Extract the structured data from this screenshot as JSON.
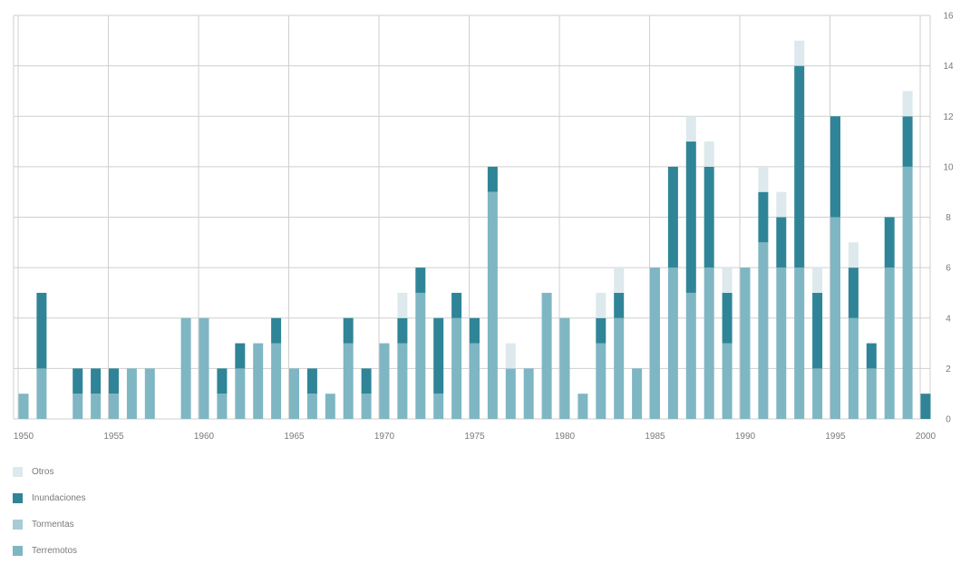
{
  "chart_data": {
    "type": "bar",
    "stacked": true,
    "title": "",
    "xlabel": "",
    "ylabel": "",
    "ylim": [
      0,
      16
    ],
    "yticks": [
      0,
      2,
      4,
      6,
      8,
      10,
      12,
      14,
      16
    ],
    "xticks": [
      1950,
      1955,
      1960,
      1965,
      1970,
      1975,
      1980,
      1985,
      1990,
      1995,
      2000
    ],
    "grid": true,
    "legend_position": "bottom-left",
    "x": [
      1950,
      1951,
      1952,
      1953,
      1954,
      1955,
      1956,
      1957,
      1958,
      1959,
      1960,
      1961,
      1962,
      1963,
      1964,
      1965,
      1966,
      1967,
      1968,
      1969,
      1970,
      1971,
      1972,
      1973,
      1974,
      1975,
      1976,
      1977,
      1978,
      1979,
      1980,
      1981,
      1982,
      1983,
      1984,
      1985,
      1986,
      1987,
      1988,
      1989,
      1990,
      1991,
      1992,
      1993,
      1994,
      1995,
      1996,
      1997,
      1998,
      1999,
      2000
    ],
    "series": [
      {
        "name": "Terremotos",
        "color": "#7fb6c3",
        "values": [
          1,
          2,
          0,
          1,
          1,
          1,
          2,
          2,
          0,
          4,
          4,
          1,
          2,
          3,
          3,
          2,
          1,
          1,
          3,
          1,
          3,
          3,
          5,
          1,
          4,
          3,
          9,
          2,
          2,
          5,
          4,
          1,
          3,
          4,
          2,
          6,
          6,
          5,
          6,
          3,
          6,
          7,
          6,
          6,
          2,
          8,
          4,
          2,
          6,
          10,
          0
        ]
      },
      {
        "name": "Tormentas",
        "color": "#a6ccd6",
        "values": [
          0,
          0,
          0,
          0,
          0,
          0,
          0,
          0,
          0,
          0,
          0,
          0,
          0,
          0,
          0,
          0,
          0,
          0,
          0,
          0,
          0,
          0,
          0,
          0,
          0,
          0,
          0,
          0,
          0,
          0,
          0,
          0,
          0,
          0,
          0,
          0,
          0,
          0,
          0,
          0,
          0,
          0,
          0,
          0,
          0,
          0,
          0,
          0,
          0,
          0,
          0
        ]
      },
      {
        "name": "Inundaciones",
        "color": "#2f8597",
        "values": [
          0,
          3,
          0,
          1,
          1,
          1,
          0,
          0,
          0,
          0,
          0,
          1,
          1,
          0,
          1,
          0,
          1,
          0,
          1,
          1,
          0,
          1,
          1,
          3,
          1,
          1,
          1,
          0,
          0,
          0,
          0,
          0,
          1,
          1,
          0,
          0,
          4,
          6,
          4,
          2,
          0,
          2,
          2,
          8,
          3,
          4,
          2,
          1,
          2,
          2,
          1
        ]
      },
      {
        "name": "Otros",
        "color": "#dde9ec",
        "values": [
          0,
          0,
          0,
          0,
          0,
          0,
          0,
          0,
          0,
          0,
          0,
          0,
          0,
          0,
          0,
          0,
          0,
          0,
          0,
          0,
          0,
          1,
          0,
          0,
          0,
          0,
          0,
          1,
          0,
          0,
          0,
          0,
          1,
          1,
          0,
          0,
          0,
          1,
          1,
          1,
          0,
          1,
          1,
          1,
          1,
          0,
          1,
          0,
          0,
          1,
          0
        ]
      }
    ]
  },
  "legend": [
    {
      "label": "Otros",
      "color": "#dde9ec"
    },
    {
      "label": "Inundaciones",
      "color": "#2f8597"
    },
    {
      "label": "Tormentas",
      "color": "#a6ccd6"
    },
    {
      "label": "Terremotos",
      "color": "#7fb6c3"
    }
  ]
}
